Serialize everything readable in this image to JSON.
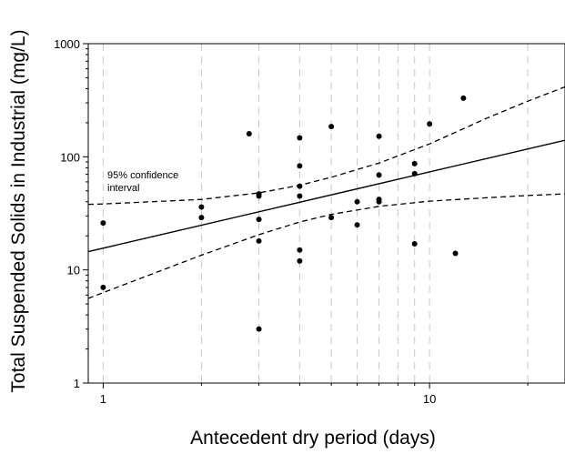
{
  "chart_data": {
    "type": "scatter",
    "title": "",
    "xlabel": "Antecedent dry period (days)",
    "ylabel": "Total Suspended Solids in Industrial (mg/L)",
    "x_scale": "log",
    "y_scale": "log",
    "xlim": [
      0.9,
      26
    ],
    "ylim": [
      1,
      1000
    ],
    "x_ticks": [
      {
        "value": 1,
        "label": "1"
      },
      {
        "value": 10,
        "label": "10"
      }
    ],
    "y_ticks": [
      {
        "value": 1,
        "label": "1"
      },
      {
        "value": 10,
        "label": "10"
      },
      {
        "value": 100,
        "label": "100"
      },
      {
        "value": 1000,
        "label": "1000"
      }
    ],
    "x_gridlines": [
      1,
      2,
      3,
      4,
      5,
      6,
      7,
      8,
      9,
      10,
      20
    ],
    "grid": "vertical dashed",
    "annotation": {
      "line1": "95% confidence",
      "line2": "interval"
    },
    "points": [
      {
        "x": 1,
        "y": 26
      },
      {
        "x": 1,
        "y": 7
      },
      {
        "x": 2,
        "y": 36
      },
      {
        "x": 2,
        "y": 29
      },
      {
        "x": 2.8,
        "y": 160
      },
      {
        "x": 3,
        "y": 47
      },
      {
        "x": 3,
        "y": 45
      },
      {
        "x": 3,
        "y": 28
      },
      {
        "x": 3,
        "y": 18
      },
      {
        "x": 3,
        "y": 3
      },
      {
        "x": 4,
        "y": 147
      },
      {
        "x": 4,
        "y": 83
      },
      {
        "x": 4,
        "y": 55
      },
      {
        "x": 4,
        "y": 45
      },
      {
        "x": 4,
        "y": 15
      },
      {
        "x": 4,
        "y": 12
      },
      {
        "x": 5,
        "y": 185
      },
      {
        "x": 5,
        "y": 29
      },
      {
        "x": 6,
        "y": 40
      },
      {
        "x": 6,
        "y": 25
      },
      {
        "x": 7,
        "y": 152
      },
      {
        "x": 7,
        "y": 69
      },
      {
        "x": 7,
        "y": 42
      },
      {
        "x": 7,
        "y": 40
      },
      {
        "x": 9,
        "y": 87
      },
      {
        "x": 9,
        "y": 71
      },
      {
        "x": 9,
        "y": 17
      },
      {
        "x": 10,
        "y": 195
      },
      {
        "x": 12,
        "y": 14
      },
      {
        "x": 12.7,
        "y": 330
      }
    ],
    "regression": {
      "x": [
        0.9,
        26
      ],
      "y": [
        14.5,
        140
      ]
    },
    "ci_upper": {
      "x": [
        0.9,
        1,
        2,
        3,
        4,
        5,
        7,
        10,
        15,
        20,
        26
      ],
      "y": [
        38,
        38.3,
        42,
        48,
        56,
        66,
        88,
        130,
        220,
        310,
        415
      ]
    },
    "ci_lower": {
      "x": [
        0.9,
        1,
        2,
        3,
        4,
        5,
        7,
        10,
        15,
        20,
        26
      ],
      "y": [
        5.6,
        6.3,
        13.5,
        20.5,
        26.5,
        31,
        36.5,
        40.5,
        43.5,
        45.5,
        47
      ]
    }
  }
}
